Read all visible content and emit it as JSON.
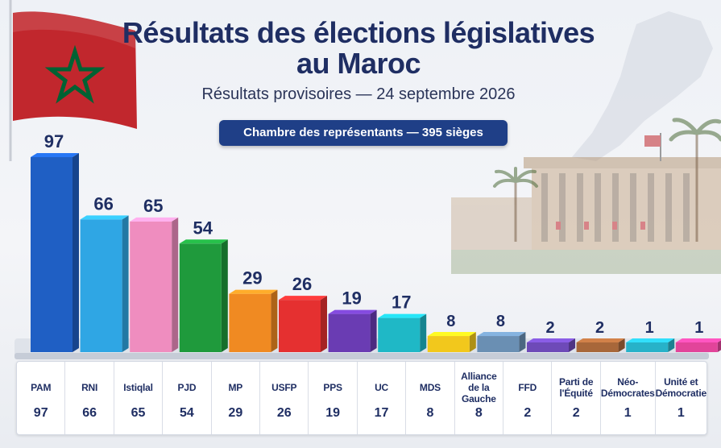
{
  "header": {
    "title_line1": "Résultats des élections législatives",
    "title_line2": "au Maroc",
    "subtitle": "Résultats provisoires — 24 septembre 2026",
    "chamber": "Chambre des représentants — 395 sièges"
  },
  "colors": {
    "title": "#1f2e63",
    "pill": "#1f3f87",
    "flag_red": "#c1272d",
    "flag_star": "#006233"
  },
  "chart_data": {
    "type": "bar",
    "title": "Résultats des élections législatives au Maroc",
    "subtitle": "Résultats provisoires — 24 septembre 2026",
    "ylim": [
      0,
      97
    ],
    "categories": [
      "PAM",
      "RNI",
      "Istiqlal",
      "PJD",
      "MP",
      "USFP",
      "PPS",
      "UC",
      "MDS",
      "Alliance\nde la Gauche",
      "FFD",
      "Parti de\nl'Équité",
      "Néo-\nDémocrates",
      "Unité et\nDémocratie"
    ],
    "values": [
      97,
      66,
      65,
      54,
      29,
      26,
      19,
      17,
      8,
      8,
      2,
      2,
      1,
      1
    ],
    "bar_colors": [
      "#1f5fc4",
      "#2fa6e4",
      "#ef8dbf",
      "#1f9a3c",
      "#f08a22",
      "#e53030",
      "#6a3cb3",
      "#1fb8c6",
      "#f2c81c",
      "#6a8fb3",
      "#6e4ab8",
      "#a8673a",
      "#27b2c9",
      "#e2449a"
    ]
  }
}
